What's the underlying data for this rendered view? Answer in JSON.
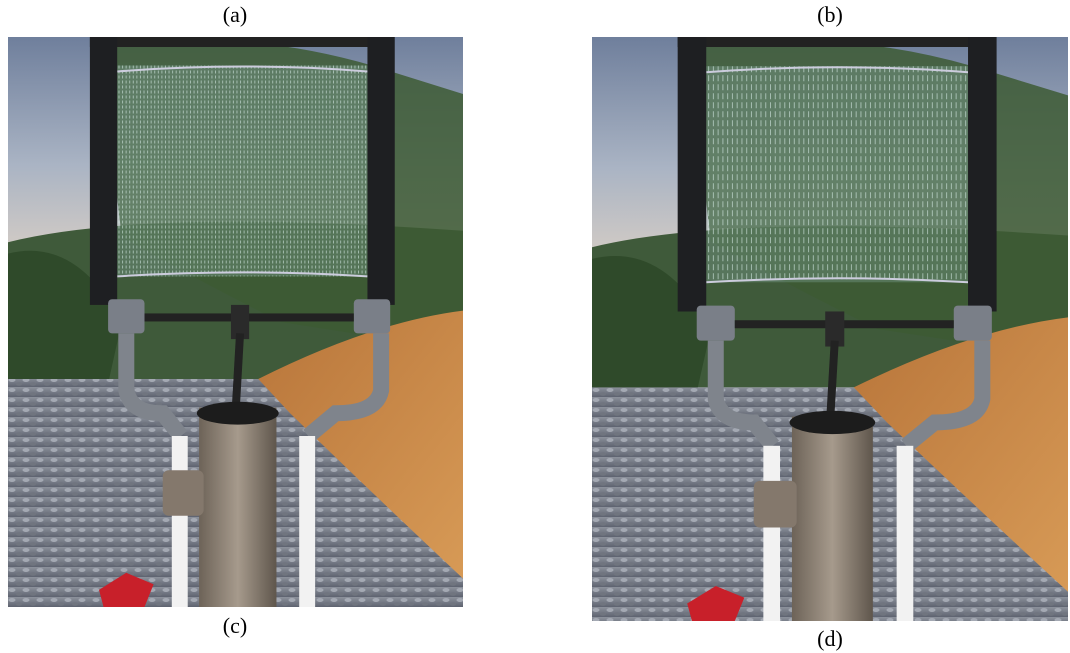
{
  "labels": [
    "(a)",
    "(b)",
    "(c)",
    "(d)"
  ]
}
